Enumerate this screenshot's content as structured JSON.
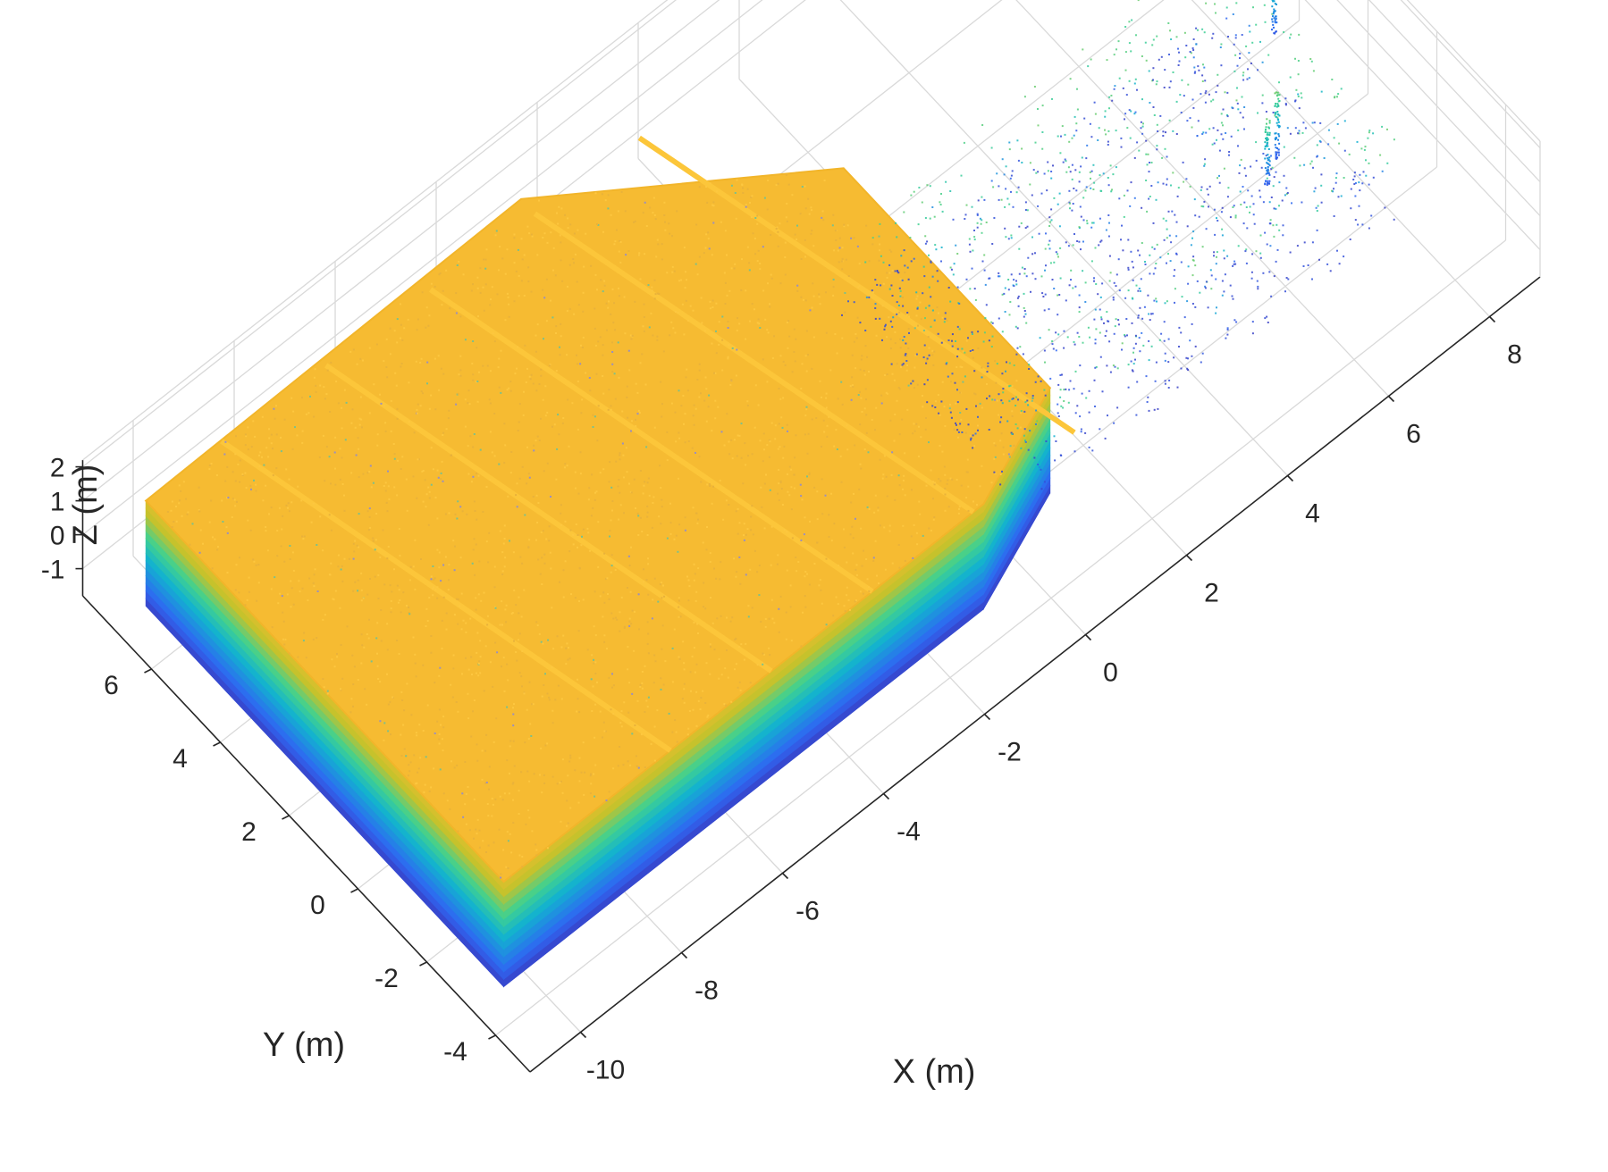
{
  "chart_data": {
    "type": "scatter3d",
    "xlabel": "X (m)",
    "ylabel": "Y (m)",
    "zlabel": "Z (m)",
    "xlim": [
      -11,
      9
    ],
    "ylim": [
      -5,
      8
    ],
    "zlim": [
      -1.8,
      2.2
    ],
    "x_ticks": [
      "-10",
      "-8",
      "-6",
      "-4",
      "-2",
      "0",
      "2",
      "4",
      "6",
      "8"
    ],
    "y_ticks": [
      "-4",
      "-2",
      "0",
      "2",
      "4",
      "6"
    ],
    "z_ticks": [
      "-1",
      "0",
      "1",
      "2"
    ],
    "grid": true,
    "colormap": [
      "#3e26a8",
      "#2f67f2",
      "#12b2d0",
      "#40d190",
      "#c4c22c",
      "#f9bc2e"
    ],
    "main_region": {
      "roof_z": 1.6,
      "base_z": -1.5,
      "outline_xy": [
        [
          -10.5,
          6.9
        ],
        [
          -10.5,
          -3.5
        ],
        [
          -1,
          -3.5
        ],
        [
          1,
          -2.5
        ],
        [
          1,
          3.5
        ],
        [
          -3,
          7
        ]
      ]
    },
    "secondary_region": {
      "x_range": [
        0.5,
        8
      ],
      "y_range": [
        -2.5,
        3
      ],
      "z_range": [
        -1.5,
        0.8
      ]
    }
  }
}
